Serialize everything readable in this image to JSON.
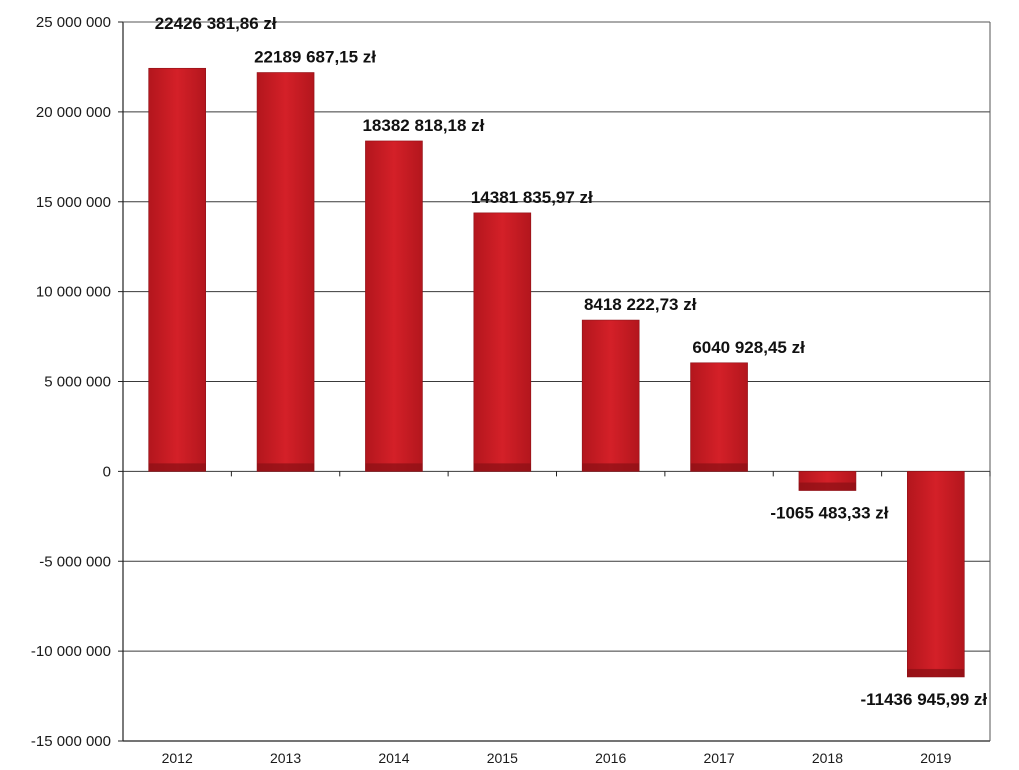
{
  "chart_data": {
    "type": "bar",
    "title": "",
    "xlabel": "",
    "ylabel": "",
    "categories": [
      "2012",
      "2013",
      "2014",
      "2015",
      "2016",
      "2017",
      "2018",
      "2019"
    ],
    "values": [
      22426381.86,
      22189687.15,
      18382818.18,
      14381835.97,
      8418222.73,
      6040928.45,
      -1065483.33,
      -11436945.99
    ],
    "data_labels": [
      "22426 381,86 zł",
      "22189 687,15 zł",
      "18382 818,18 zł",
      "14381 835,97 zł",
      "8418 222,73 zł",
      "6040 928,45 zł",
      "-1065 483,33 zł",
      "-11436 945,99 zł"
    ],
    "ylim": [
      -15000000,
      25000000
    ],
    "yticks": [
      25000000,
      20000000,
      15000000,
      10000000,
      5000000,
      0,
      -5000000,
      -10000000,
      -15000000
    ],
    "ytick_labels": [
      "25 000 000",
      "20 000 000",
      "15 000 000",
      "10 000 000",
      "5 000 000",
      "0",
      "-5 000 000",
      "-10 000 000",
      "-15 000 000"
    ],
    "grid": true,
    "legend": "none",
    "colors": {
      "bar": "#d42028",
      "bar_edge": "#8e1016",
      "grid": "#3a3a3a"
    }
  }
}
